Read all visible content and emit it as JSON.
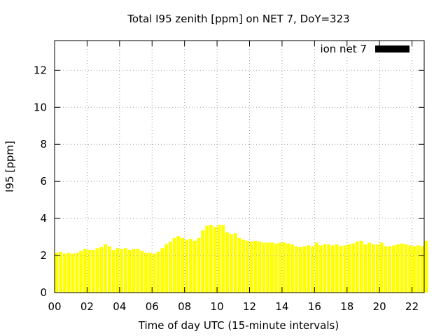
{
  "chart_data": {
    "type": "bar",
    "title": "Total I95 zenith [ppm] on NET 7, DoY=323",
    "xlabel": "Time of day UTC (15-minute intervals)",
    "ylabel": "I95 [ppm]",
    "xlim": [
      0,
      22.75
    ],
    "ylim": [
      0,
      13.6
    ],
    "x_tick_values": [
      0,
      2,
      4,
      6,
      8,
      10,
      12,
      14,
      16,
      18,
      20,
      22
    ],
    "x_tick_labels": [
      "00",
      "02",
      "04",
      "06",
      "08",
      "10",
      "12",
      "14",
      "16",
      "18",
      "20",
      "22"
    ],
    "y_tick_values": [
      0,
      2,
      4,
      6,
      8,
      10,
      12
    ],
    "y_tick_labels": [
      "0",
      "2",
      "4",
      "6",
      "8",
      "10",
      "12"
    ],
    "grid": true,
    "legend_position": "top-right",
    "bar_color": "#ffff00",
    "legend_swatch_color": "#000000",
    "series": [
      {
        "name": "ion net 7",
        "x_start": 0,
        "interval_hours": 0.25,
        "values": [
          2.15,
          2.2,
          2.1,
          2.15,
          2.1,
          2.15,
          2.25,
          2.35,
          2.3,
          2.3,
          2.4,
          2.45,
          2.6,
          2.5,
          2.3,
          2.4,
          2.35,
          2.4,
          2.3,
          2.35,
          2.35,
          2.25,
          2.15,
          2.15,
          2.1,
          2.2,
          2.4,
          2.6,
          2.75,
          2.95,
          3.05,
          2.95,
          2.85,
          2.9,
          2.8,
          2.95,
          3.35,
          3.6,
          3.65,
          3.55,
          3.65,
          3.65,
          3.25,
          3.15,
          3.2,
          2.95,
          2.85,
          2.8,
          2.75,
          2.8,
          2.75,
          2.7,
          2.7,
          2.7,
          2.65,
          2.7,
          2.7,
          2.65,
          2.6,
          2.5,
          2.45,
          2.5,
          2.55,
          2.5,
          2.7,
          2.55,
          2.6,
          2.6,
          2.55,
          2.6,
          2.5,
          2.55,
          2.6,
          2.65,
          2.75,
          2.8,
          2.6,
          2.7,
          2.6,
          2.6,
          2.7,
          2.5,
          2.5,
          2.55,
          2.6,
          2.65,
          2.6,
          2.55,
          2.5,
          2.55,
          2.5,
          2.8
        ]
      }
    ]
  }
}
